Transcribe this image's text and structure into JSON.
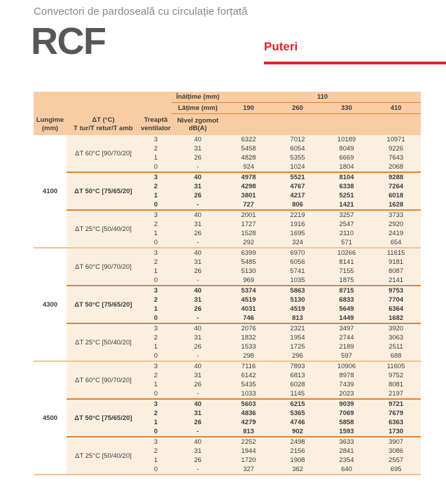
{
  "page": {
    "subtitle": "Convectori de pardoseală cu circulație forțată",
    "logo": "RCF",
    "section_label": "Puteri"
  },
  "colors": {
    "accent_red": "#E32228",
    "header_bg": "#F8CDA4",
    "body_bg": "#FBF0E0",
    "line_dark_orange": "#EE8024",
    "line_pale_orange": "#F3C38E",
    "text": "#3C3C3B",
    "logo_gray": "#575756",
    "subtitle_gray": "#878787"
  },
  "table": {
    "height_label": "Înălțime (mm)",
    "height_value": "110",
    "width_label": "Lățime (mm)",
    "width_values": [
      "190",
      "260",
      "330",
      "410"
    ],
    "col_headers": {
      "lungime_line1": "Lungime",
      "lungime_line2": "(mm)",
      "dt_line1": "ΔT (°C)",
      "dt_line2": "T tur/T retur/T amb",
      "treapta_line1": "Treaptă",
      "treapta_line2": "ventilator",
      "nivel_line1": "Nivel zgomot",
      "nivel_line2": "dB(A)"
    },
    "groups": [
      {
        "lungime": "4100",
        "subgroups": [
          {
            "dt": "ΔT 60°C [90/70/20]",
            "bold": false,
            "rows": [
              [
                "3",
                "40",
                "6322",
                "7012",
                "10189",
                "10971"
              ],
              [
                "2",
                "31",
                "5458",
                "6054",
                "8049",
                "9226"
              ],
              [
                "1",
                "26",
                "4828",
                "5355",
                "6669",
                "7643"
              ],
              [
                "0",
                "-",
                "924",
                "1024",
                "1804",
                "2068"
              ]
            ]
          },
          {
            "dt": "ΔT 50°C [75/65/20]",
            "bold": true,
            "rows": [
              [
                "3",
                "40",
                "4978",
                "5521",
                "8104",
                "9288"
              ],
              [
                "2",
                "31",
                "4298",
                "4767",
                "6338",
                "7264"
              ],
              [
                "1",
                "26",
                "3801",
                "4217",
                "5251",
                "6018"
              ],
              [
                "0",
                "-",
                "727",
                "806",
                "1421",
                "1628"
              ]
            ]
          },
          {
            "dt": "ΔT 25°C [50/40/20]",
            "bold": false,
            "rows": [
              [
                "3",
                "40",
                "2001",
                "2219",
                "3257",
                "3733"
              ],
              [
                "2",
                "31",
                "1727",
                "1916",
                "2547",
                "2920"
              ],
              [
                "1",
                "26",
                "1528",
                "1695",
                "2110",
                "2419"
              ],
              [
                "0",
                "-",
                "292",
                "324",
                "571",
                "654"
              ]
            ]
          }
        ]
      },
      {
        "lungime": "4300",
        "subgroups": [
          {
            "dt": "ΔT 60°C [90/70/20]",
            "bold": false,
            "rows": [
              [
                "3",
                "40",
                "6399",
                "6970",
                "10266",
                "11615"
              ],
              [
                "2",
                "31",
                "5485",
                "6056",
                "8141",
                "9181"
              ],
              [
                "1",
                "26",
                "5130",
                "5741",
                "7155",
                "8087"
              ],
              [
                "0",
                "-",
                "969",
                "1035",
                "1875",
                "2141"
              ]
            ]
          },
          {
            "dt": "ΔT 50°C [75/65/20]",
            "bold": true,
            "rows": [
              [
                "3",
                "40",
                "5374",
                "5863",
                "8715",
                "9753"
              ],
              [
                "2",
                "31",
                "4519",
                "5130",
                "6833",
                "7704"
              ],
              [
                "1",
                "26",
                "4031",
                "4519",
                "5649",
                "6364"
              ],
              [
                "0",
                "-",
                "746",
                "813",
                "1449",
                "1682"
              ]
            ]
          },
          {
            "dt": "ΔT 25°C [50/40/20]",
            "bold": false,
            "rows": [
              [
                "3",
                "40",
                "2076",
                "2321",
                "3497",
                "3920"
              ],
              [
                "2",
                "31",
                "1832",
                "1954",
                "2744",
                "3063"
              ],
              [
                "1",
                "26",
                "1533",
                "1725",
                "2189",
                "2511"
              ],
              [
                "0",
                "-",
                "298",
                "296",
                "597",
                "688"
              ]
            ]
          }
        ]
      },
      {
        "lungime": "4500",
        "subgroups": [
          {
            "dt": "ΔT 60°C [90/70/20]",
            "bold": false,
            "rows": [
              [
                "3",
                "40",
                "7116",
                "7893",
                "10906",
                "11605"
              ],
              [
                "2",
                "31",
                "6142",
                "6813",
                "8978",
                "9752"
              ],
              [
                "1",
                "26",
                "5435",
                "6028",
                "7439",
                "8081"
              ],
              [
                "0",
                "-",
                "1033",
                "1145",
                "2023",
                "2197"
              ]
            ]
          },
          {
            "dt": "ΔT 50°C [75/65/20]",
            "bold": true,
            "rows": [
              [
                "3",
                "40",
                "5603",
                "6215",
                "9039",
                "9721"
              ],
              [
                "2",
                "31",
                "4836",
                "5365",
                "7069",
                "7679"
              ],
              [
                "1",
                "26",
                "4279",
                "4746",
                "5858",
                "6363"
              ],
              [
                "0",
                "-",
                "813",
                "902",
                "1593",
                "1730"
              ]
            ]
          },
          {
            "dt": "ΔT 25°C [50/40/20]",
            "bold": false,
            "rows": [
              [
                "3",
                "40",
                "2252",
                "2498",
                "3633",
                "3907"
              ],
              [
                "2",
                "31",
                "1944",
                "2156",
                "2841",
                "3086"
              ],
              [
                "1",
                "26",
                "1720",
                "1908",
                "2354",
                "2557"
              ],
              [
                "0",
                "-",
                "327",
                "362",
                "640",
                "695"
              ]
            ]
          }
        ]
      }
    ]
  }
}
